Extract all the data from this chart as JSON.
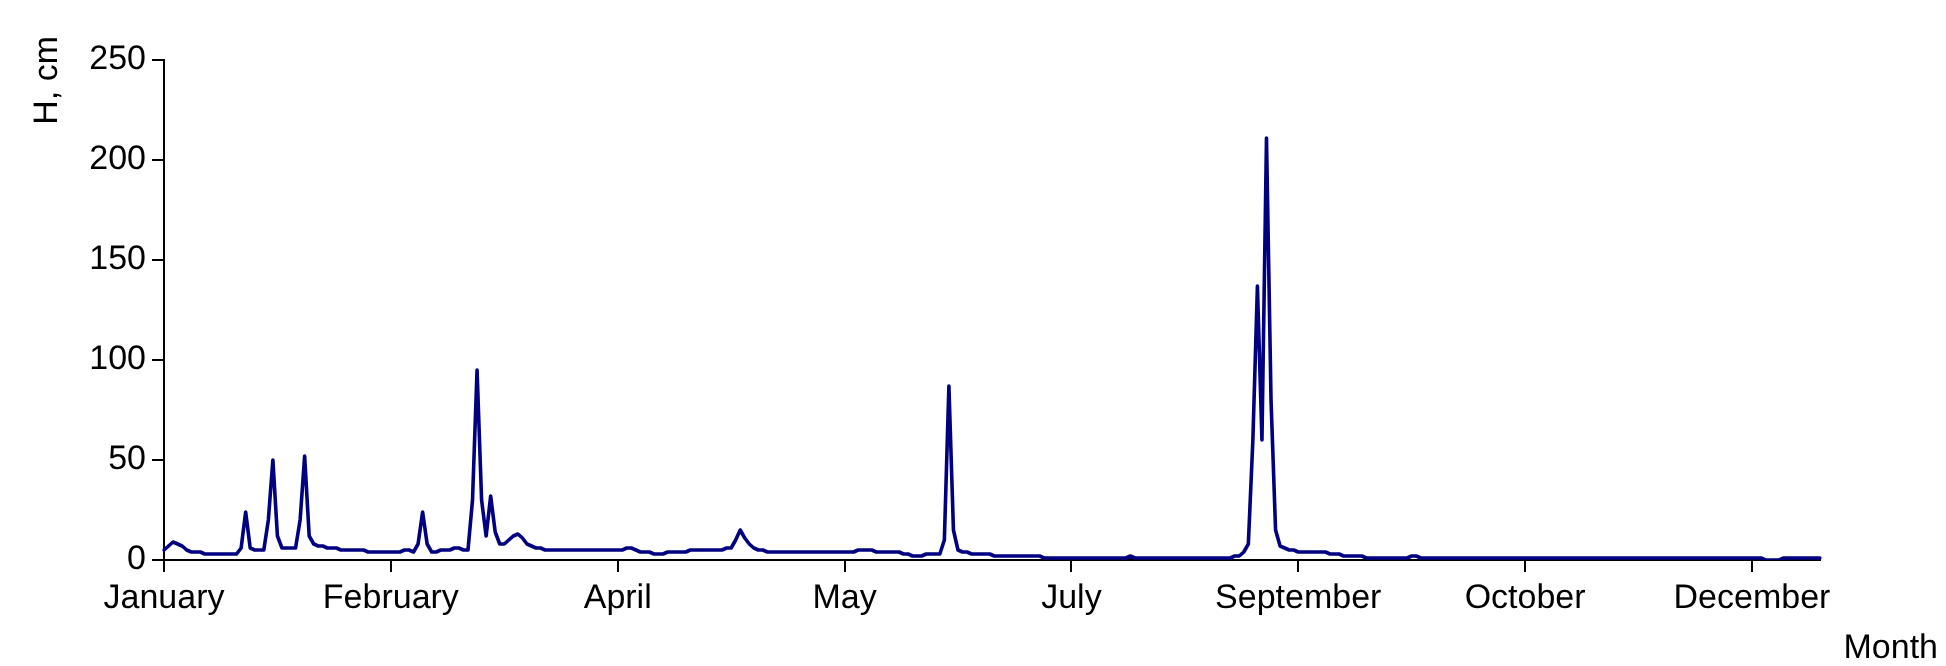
{
  "chart_data": {
    "type": "line",
    "xlabel": "Month",
    "ylabel": "H, cm",
    "categories": [
      "January",
      null,
      null,
      null,
      null,
      null,
      null,
      null,
      null,
      null,
      null,
      null,
      null,
      null,
      null,
      null,
      null,
      null,
      null,
      null,
      null,
      null,
      null,
      null,
      null,
      null,
      null,
      null,
      null,
      null,
      null,
      null,
      null,
      null,
      null,
      null,
      null,
      null,
      null,
      null,
      null,
      null,
      null,
      null,
      null,
      null,
      null,
      null,
      null,
      null,
      "February",
      null,
      null,
      null,
      null,
      null,
      null,
      null,
      null,
      null,
      null,
      null,
      null,
      null,
      null,
      null,
      null,
      null,
      null,
      null,
      null,
      null,
      null,
      null,
      null,
      null,
      null,
      null,
      null,
      null,
      null,
      null,
      null,
      null,
      null,
      null,
      null,
      null,
      null,
      null,
      null,
      null,
      null,
      null,
      null,
      null,
      null,
      null,
      null,
      null,
      "April",
      null,
      null,
      null,
      null,
      null,
      null,
      null,
      null,
      null,
      null,
      null,
      null,
      null,
      null,
      null,
      null,
      null,
      null,
      null,
      null,
      null,
      null,
      null,
      null,
      null,
      null,
      null,
      null,
      null,
      null,
      null,
      null,
      null,
      null,
      null,
      null,
      null,
      null,
      null,
      null,
      null,
      null,
      null,
      null,
      null,
      null,
      null,
      null,
      null,
      "May",
      null,
      null,
      null,
      null,
      null,
      null,
      null,
      null,
      null,
      null,
      null,
      null,
      null,
      null,
      null,
      null,
      null,
      null,
      null,
      null,
      null,
      null,
      null,
      null,
      null,
      null,
      null,
      null,
      null,
      null,
      null,
      null,
      null,
      null,
      null,
      null,
      null,
      null,
      null,
      null,
      null,
      null,
      null,
      null,
      null,
      null,
      null,
      null,
      null,
      "July",
      null,
      null,
      null,
      null,
      null,
      null,
      null,
      null,
      null,
      null,
      null,
      null,
      null,
      null,
      null,
      null,
      null,
      null,
      null,
      null,
      null,
      null,
      null,
      null,
      null,
      null,
      null,
      null,
      null,
      null,
      null,
      null,
      null,
      null,
      null,
      null,
      null,
      null,
      null,
      null,
      null,
      null,
      null,
      null,
      null,
      null,
      null,
      null,
      null,
      "September",
      null,
      null,
      null,
      null,
      null,
      null,
      null,
      null,
      null,
      null,
      null,
      null,
      null,
      null,
      null,
      null,
      null,
      null,
      null,
      null,
      null,
      null,
      null,
      null,
      null,
      null,
      null,
      null,
      null,
      null,
      null,
      null,
      null,
      null,
      null,
      null,
      null,
      null,
      null,
      null,
      null,
      null,
      null,
      null,
      null,
      null,
      null,
      null,
      null,
      "October",
      null,
      null,
      null,
      null,
      null,
      null,
      null,
      null,
      null,
      null,
      null,
      null,
      null,
      null,
      null,
      null,
      null,
      null,
      null,
      null,
      null,
      null,
      null,
      null,
      null,
      null,
      null,
      null,
      null,
      null,
      null,
      null,
      null,
      null,
      null,
      null,
      null,
      null,
      null,
      null,
      null,
      null,
      null,
      null,
      null,
      null,
      null,
      null,
      null,
      "December",
      null,
      null,
      null,
      null,
      null,
      null,
      null,
      null,
      null,
      null,
      null,
      null,
      null,
      null,
      null
    ],
    "ylim": [
      0,
      250
    ],
    "yticks": [
      0,
      50,
      100,
      150,
      200,
      250
    ],
    "grid": false,
    "legend": false,
    "marker": "none",
    "line_style": "solid",
    "series": [
      {
        "color": "#000080",
        "values": [
          5,
          7,
          9,
          8,
          7,
          5,
          4,
          4,
          4,
          3,
          3,
          3,
          3,
          3,
          3,
          3,
          3,
          6,
          24,
          6,
          5,
          5,
          5,
          20,
          50,
          12,
          6,
          6,
          6,
          6,
          20,
          52,
          12,
          8,
          7,
          7,
          6,
          6,
          6,
          5,
          5,
          5,
          5,
          5,
          5,
          4,
          4,
          4,
          4,
          4,
          4,
          4,
          4,
          5,
          5,
          4,
          8,
          24,
          8,
          4,
          4,
          5,
          5,
          5,
          6,
          6,
          5,
          5,
          30,
          95,
          30,
          12,
          32,
          14,
          8,
          8,
          10,
          12,
          13,
          11,
          8,
          7,
          6,
          6,
          5,
          5,
          5,
          5,
          5,
          5,
          5,
          5,
          5,
          5,
          5,
          5,
          5,
          5,
          5,
          5,
          5,
          5,
          6,
          6,
          5,
          4,
          4,
          4,
          3,
          3,
          3,
          4,
          4,
          4,
          4,
          4,
          5,
          5,
          5,
          5,
          5,
          5,
          5,
          5,
          6,
          6,
          10,
          15,
          11,
          8,
          6,
          5,
          5,
          4,
          4,
          4,
          4,
          4,
          4,
          4,
          4,
          4,
          4,
          4,
          4,
          4,
          4,
          4,
          4,
          4,
          4,
          4,
          4,
          5,
          5,
          5,
          5,
          4,
          4,
          4,
          4,
          4,
          4,
          3,
          3,
          2,
          2,
          2,
          3,
          3,
          3,
          3,
          10,
          87,
          15,
          5,
          4,
          4,
          3,
          3,
          3,
          3,
          3,
          2,
          2,
          2,
          2,
          2,
          2,
          2,
          2,
          2,
          2,
          2,
          1,
          1,
          1,
          1,
          1,
          1,
          1,
          1,
          1,
          1,
          1,
          1,
          1,
          1,
          1,
          1,
          1,
          1,
          1,
          2,
          1,
          1,
          1,
          1,
          1,
          1,
          1,
          1,
          1,
          1,
          1,
          1,
          1,
          1,
          1,
          1,
          1,
          1,
          1,
          1,
          1,
          1,
          2,
          2,
          4,
          8,
          60,
          137,
          60,
          211,
          80,
          15,
          7,
          6,
          5,
          5,
          4,
          4,
          4,
          4,
          4,
          4,
          4,
          3,
          3,
          3,
          2,
          2,
          2,
          2,
          2,
          1,
          1,
          1,
          1,
          1,
          1,
          1,
          1,
          1,
          1,
          2,
          2,
          1,
          1,
          1,
          1,
          1,
          1,
          1,
          1,
          1,
          1,
          1,
          1,
          1,
          1,
          1,
          1,
          1,
          1,
          1,
          1,
          1,
          1,
          1,
          1,
          1,
          1,
          1,
          1,
          1,
          1,
          1,
          1,
          1,
          1,
          1,
          1,
          1,
          1,
          1,
          1,
          1,
          1,
          1,
          1,
          1,
          1,
          1,
          1,
          1,
          1,
          1,
          1,
          1,
          1,
          1,
          1,
          1,
          1,
          1,
          1,
          1,
          1,
          1,
          1,
          1,
          1,
          1,
          1,
          1,
          1,
          1,
          1,
          1,
          1,
          1,
          1,
          0,
          0,
          0,
          0,
          1,
          1,
          1,
          1,
          1,
          1,
          1,
          1,
          1
        ]
      }
    ]
  }
}
